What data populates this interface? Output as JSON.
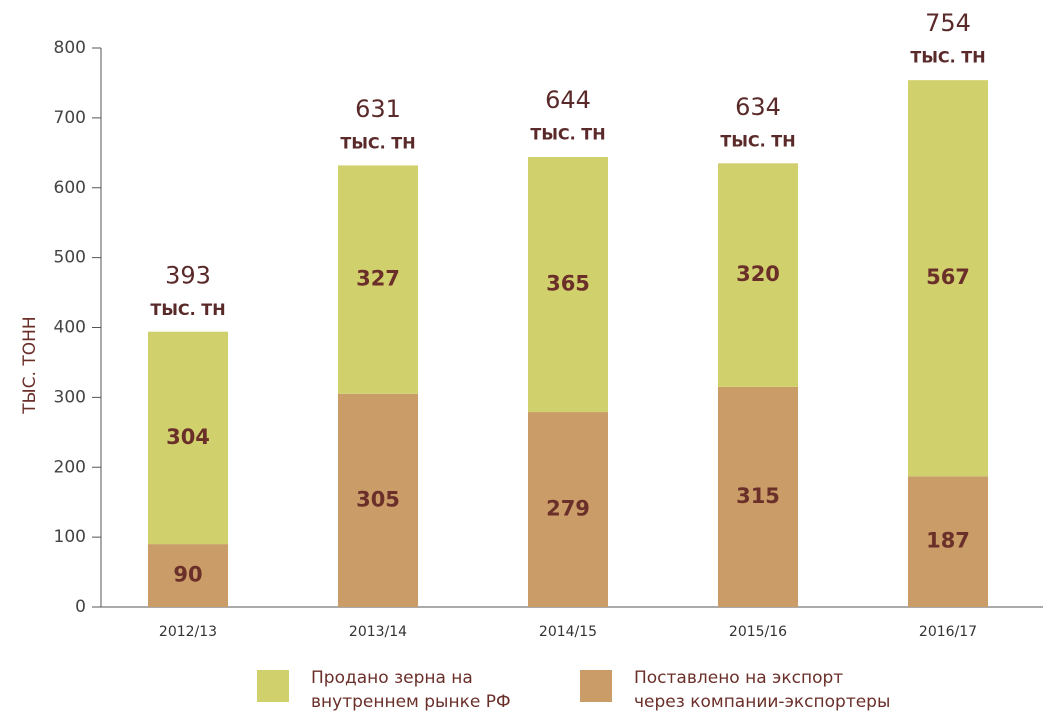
{
  "chart_data": {
    "type": "stacked_bar",
    "y_label": "ТЫС. ТОНН",
    "categories": [
      "2012/13",
      "2013/14",
      "2014/15",
      "2015/16",
      "2016/17"
    ],
    "series": [
      {
        "name": "Поставлено на экспорт через компании-экспортеры",
        "color": "#c99c68",
        "values": [
          90,
          305,
          279,
          315,
          187
        ]
      },
      {
        "name": "Продано зерна на внутреннем рынке РФ",
        "color": "#d0d16d",
        "values": [
          304,
          327,
          365,
          320,
          567
        ]
      }
    ],
    "totals": [
      393,
      631,
      644,
      634,
      754
    ],
    "total_unit": "ТЫС. ТН",
    "ylim": [
      0,
      800
    ],
    "yticks": [
      0,
      100,
      200,
      300,
      400,
      500,
      600,
      700,
      800
    ]
  }
}
